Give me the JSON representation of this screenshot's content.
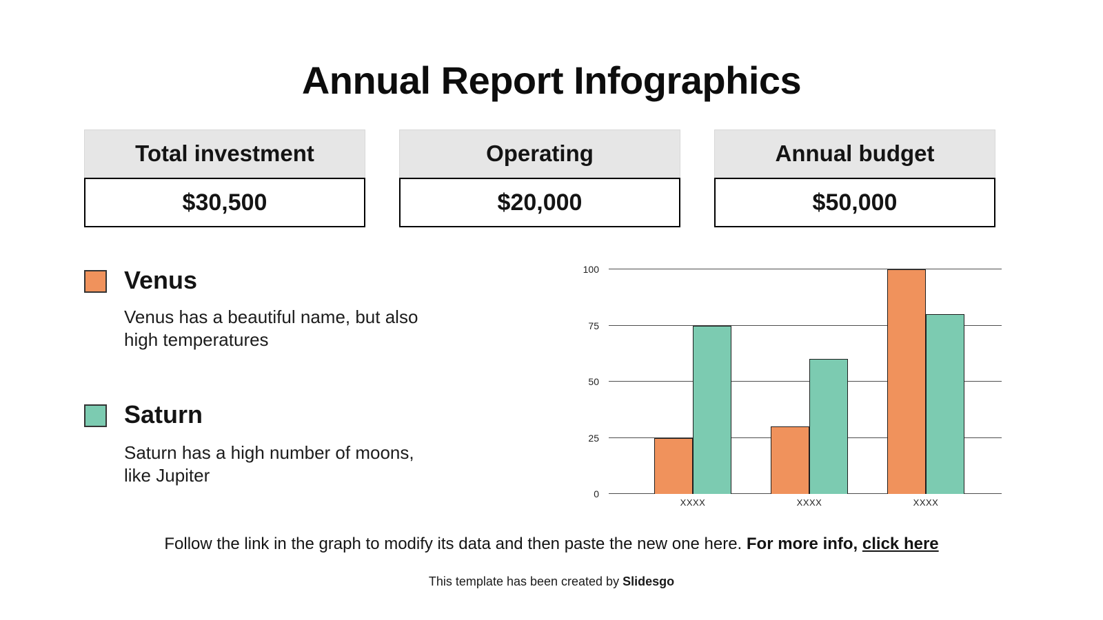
{
  "title": "Annual Report Infographics",
  "stats": [
    {
      "label": "Total investment",
      "value": "$30,500"
    },
    {
      "label": "Operating",
      "value": "$20,000"
    },
    {
      "label": "Annual budget",
      "value": "$50,000"
    }
  ],
  "legend": [
    {
      "name": "Venus",
      "description": "Venus has a beautiful name, but also\nhigh temperatures",
      "color": "#F0925C"
    },
    {
      "name": "Saturn",
      "description": "Saturn has a high number of moons,\nlike Jupiter",
      "color": "#7CCBB1"
    }
  ],
  "chart_data": {
    "type": "bar",
    "categories": [
      "XXXX",
      "XXXX",
      "XXXX"
    ],
    "series": [
      {
        "name": "Venus",
        "color": "#F0925C",
        "values": [
          25,
          30,
          100
        ]
      },
      {
        "name": "Saturn",
        "color": "#7CCBB1",
        "values": [
          75,
          60,
          80
        ]
      }
    ],
    "title": "",
    "xlabel": "",
    "ylabel": "",
    "yticks": [
      0,
      25,
      50,
      75,
      100
    ],
    "ylim": [
      0,
      100
    ],
    "grid": true,
    "gridline_color": "#4d4d4d",
    "bar_outline_color": "#1e1e1e",
    "legend_position": "left-panel"
  },
  "footer": {
    "note_normal": "Follow the link in the graph to modify its data and then paste the new one here. ",
    "note_bold": "For more info, ",
    "link_text": "click here",
    "credit_prefix": "This template has been created by ",
    "credit_brand": "Slidesgo"
  }
}
